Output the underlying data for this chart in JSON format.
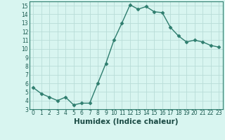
{
  "x": [
    0,
    1,
    2,
    3,
    4,
    5,
    6,
    7,
    8,
    9,
    10,
    11,
    12,
    13,
    14,
    15,
    16,
    17,
    18,
    19,
    20,
    21,
    22,
    23
  ],
  "y": [
    5.5,
    4.8,
    4.4,
    4.0,
    4.4,
    3.5,
    3.7,
    3.7,
    6.0,
    8.3,
    11.0,
    13.0,
    15.1,
    14.6,
    14.9,
    14.3,
    14.2,
    12.5,
    11.5,
    10.8,
    11.0,
    10.8,
    10.4,
    10.2
  ],
  "line_color": "#2e7d6e",
  "marker": "D",
  "marker_size": 2.5,
  "bg_color": "#d8f5f0",
  "grid_color": "#b8ddd8",
  "xlabel": "Humidex (Indice chaleur)",
  "xlim": [
    -0.5,
    23.5
  ],
  "ylim": [
    3,
    15.5
  ],
  "yticks": [
    3,
    4,
    5,
    6,
    7,
    8,
    9,
    10,
    11,
    12,
    13,
    14,
    15
  ],
  "xticks": [
    0,
    1,
    2,
    3,
    4,
    5,
    6,
    7,
    8,
    9,
    10,
    11,
    12,
    13,
    14,
    15,
    16,
    17,
    18,
    19,
    20,
    21,
    22,
    23
  ],
  "tick_label_fontsize": 5.5,
  "xlabel_fontsize": 7.5,
  "line_width": 1.0
}
